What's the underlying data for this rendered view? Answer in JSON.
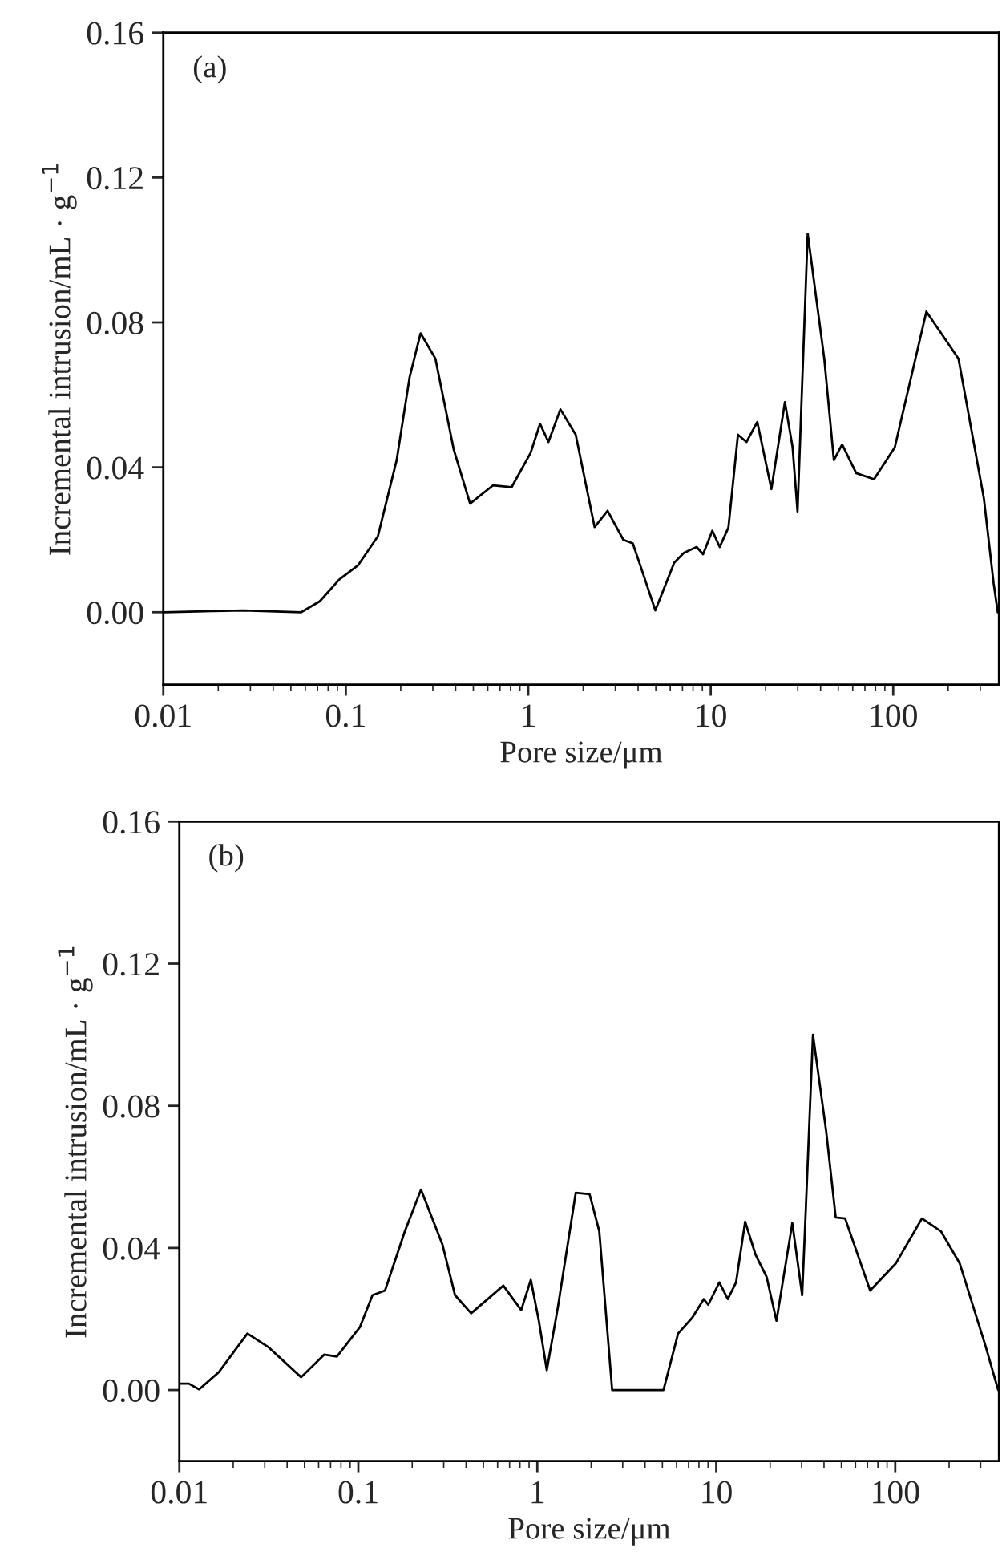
{
  "chart_data": [
    {
      "type": "line",
      "annotations": [
        "(a)"
      ],
      "xlabel": "Pore size/μm",
      "ylabel": "Incremental intrusion/mL · g$^{−1}$",
      "log": "x",
      "xlim": [
        0.01,
        380
      ],
      "xticks": [
        0.01,
        0.1,
        1,
        10,
        100
      ],
      "ylim": [
        -0.02,
        0.16
      ],
      "yticks": [
        {
          "value": 0,
          "label": "0.00"
        },
        {
          "value": 0.04,
          "label": "0.04"
        },
        {
          "value": 0.08,
          "label": "0.08"
        },
        {
          "value": 0.12,
          "label": "0.12"
        },
        {
          "value": 0.16,
          "label": "0.16"
        }
      ],
      "series": [
        {
          "color": "#000000",
          "x": [
            0.01,
            0.0275,
            0.057,
            0.072,
            0.092,
            0.117,
            0.15,
            0.19,
            0.224,
            0.257,
            0.31,
            0.39,
            0.48,
            0.64,
            0.81,
            1.03,
            1.16,
            1.29,
            1.5,
            1.82,
            2.31,
            2.72,
            3.32,
            3.74,
            4.06,
            4.97,
            6.31,
            7.13,
            8.37,
            9.08,
            10.2,
            11.2,
            12.5,
            14.1,
            15.7,
            18,
            21.5,
            25.5,
            28.1,
            29.9,
            31.6,
            34,
            41.9,
            47.3,
            52.5,
            62.7,
            78.5,
            102,
            152,
            228,
            314,
            355,
            374
          ],
          "values": [
            0,
            0.0005,
            0,
            0.003,
            0.009,
            0.013,
            0.021,
            0.042,
            0.065,
            0.077,
            0.07,
            0.045,
            0.03,
            0.035,
            0.0345,
            0.044,
            0.052,
            0.047,
            0.056,
            0.049,
            0.0235,
            0.028,
            0.02,
            0.019,
            0.0137,
            0.0005,
            0.0137,
            0.0164,
            0.018,
            0.016,
            0.0225,
            0.018,
            0.0234,
            0.049,
            0.047,
            0.0525,
            0.034,
            0.058,
            0.0455,
            0.0278,
            0.061,
            0.1045,
            0.07,
            0.042,
            0.0463,
            0.0384,
            0.0367,
            0.0455,
            0.083,
            0.07,
            0.0314,
            0.008,
            0
          ]
        }
      ]
    },
    {
      "type": "line",
      "annotations": [
        "(b)"
      ],
      "xlabel": "Pore size/μm",
      "ylabel": "Incremental intrusion/mL · g$^{−1}$",
      "log": "x",
      "xlim": [
        0.01,
        380
      ],
      "xticks": [
        0.01,
        0.1,
        1,
        10,
        100
      ],
      "ylim": [
        -0.02,
        0.16
      ],
      "yticks": [
        {
          "value": 0,
          "label": "0.00"
        },
        {
          "value": 0.04,
          "label": "0.04"
        },
        {
          "value": 0.08,
          "label": "0.08"
        },
        {
          "value": 0.12,
          "label": "0.12"
        },
        {
          "value": 0.16,
          "label": "0.16"
        }
      ],
      "series": [
        {
          "color": "#000000",
          "x": [
            0.01,
            0.0113,
            0.0129,
            0.0166,
            0.024,
            0.0316,
            0.0479,
            0.0646,
            0.0759,
            0.102,
            0.12,
            0.141,
            0.182,
            0.224,
            0.295,
            0.347,
            0.427,
            0.646,
            0.813,
            0.92,
            1.02,
            1.13,
            1.3,
            1.64,
            1.96,
            2.22,
            2.62,
            5.07,
            6.12,
            7.35,
            8.51,
            9.02,
            10.4,
            11.6,
            12.9,
            14.5,
            16.6,
            19.1,
            21.7,
            26.6,
            30.2,
            31.6,
            34.7,
            41.1,
            46.5,
            52.5,
            72.4,
            101,
            141,
            180,
            229,
            320,
            376
          ],
          "values": [
            0.0018,
            0.0018,
            0.0002,
            0.005,
            0.0159,
            0.012,
            0.0036,
            0.01,
            0.0094,
            0.0177,
            0.0267,
            0.028,
            0.0447,
            0.0564,
            0.041,
            0.0267,
            0.0216,
            0.0294,
            0.0225,
            0.031,
            0.0195,
            0.0056,
            0.023,
            0.0555,
            0.0551,
            0.0447,
            0,
            0,
            0.0159,
            0.0204,
            0.0256,
            0.024,
            0.0303,
            0.0256,
            0.0303,
            0.0474,
            0.038,
            0.0319,
            0.0195,
            0.047,
            0.0267,
            0.05,
            0.1,
            0.073,
            0.0486,
            0.0483,
            0.028,
            0.0357,
            0.0483,
            0.0447,
            0.0357,
            0.0123,
            0
          ]
        }
      ]
    }
  ]
}
